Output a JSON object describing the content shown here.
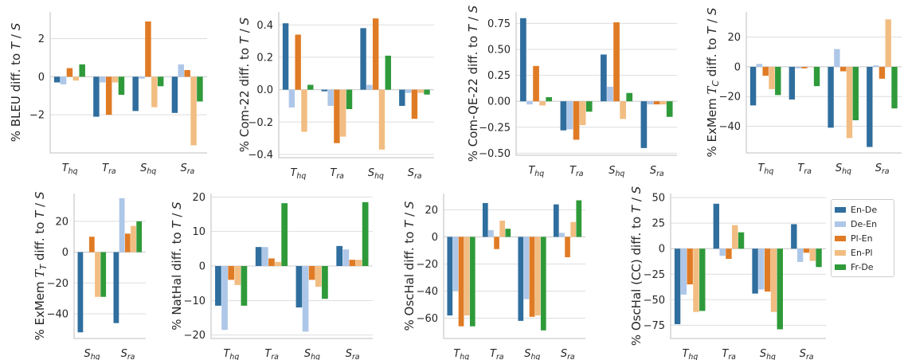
{
  "legend": {
    "items": [
      {
        "label": "En-De",
        "color": "#2f6e9e"
      },
      {
        "label": "De-En",
        "color": "#aec7e8"
      },
      {
        "label": "Pl-En",
        "color": "#e07b25"
      },
      {
        "label": "En-Pl",
        "color": "#f2bd82"
      },
      {
        "label": "Fr-De",
        "color": "#2f9a3a"
      }
    ]
  },
  "chart_data": [
    {
      "type": "bar",
      "ylabel": "% BLEU diff. to T / S",
      "categories": [
        "T_hq",
        "T_ra",
        "S_hq",
        "S_ra"
      ],
      "ylim": [
        -4.0,
        3.4
      ],
      "yticks": [
        2,
        0,
        -2
      ],
      "grid": true,
      "series": [
        {
          "name": "En-De",
          "values": [
            -0.3,
            -2.1,
            -1.8,
            -1.9
          ]
        },
        {
          "name": "De-En",
          "values": [
            -0.4,
            -0.3,
            -0.1,
            0.65
          ]
        },
        {
          "name": "Pl-En",
          "values": [
            0.45,
            -2.0,
            2.9,
            0.35
          ]
        },
        {
          "name": "En-Pl",
          "values": [
            -0.2,
            -0.3,
            -1.6,
            -3.6
          ]
        },
        {
          "name": "Fr-De",
          "values": [
            0.65,
            -0.95,
            -0.5,
            -1.3
          ]
        }
      ]
    },
    {
      "type": "bar",
      "ylabel": "% Com-22 diff. to T / S",
      "categories": [
        "T_hq",
        "T_ra",
        "S_hq",
        "S_ra"
      ],
      "ylim": [
        -0.42,
        0.48
      ],
      "yticks": [
        0.4,
        0.2,
        0.0,
        -0.2,
        -0.4
      ],
      "grid": true,
      "series": [
        {
          "name": "En-De",
          "values": [
            0.41,
            -0.01,
            0.38,
            -0.1
          ]
        },
        {
          "name": "De-En",
          "values": [
            -0.11,
            -0.1,
            0.03,
            -0.02
          ]
        },
        {
          "name": "Pl-En",
          "values": [
            0.34,
            -0.33,
            0.44,
            -0.18
          ]
        },
        {
          "name": "En-Pl",
          "values": [
            -0.26,
            -0.29,
            -0.37,
            -0.02
          ]
        },
        {
          "name": "Fr-De",
          "values": [
            0.03,
            -0.12,
            0.21,
            -0.03
          ]
        }
      ]
    },
    {
      "type": "bar",
      "ylabel": "% Com-QE-22 diff. to T / S",
      "categories": [
        "T_hq",
        "T_ra",
        "S_hq",
        "S_ra"
      ],
      "ylim": [
        -0.52,
        0.86
      ],
      "yticks": [
        0.75,
        0.5,
        0.25,
        0.0,
        -0.25,
        -0.5
      ],
      "grid": true,
      "series": [
        {
          "name": "En-De",
          "values": [
            0.8,
            -0.28,
            0.45,
            -0.45
          ]
        },
        {
          "name": "De-En",
          "values": [
            -0.03,
            -0.27,
            0.14,
            -0.03
          ]
        },
        {
          "name": "Pl-En",
          "values": [
            0.34,
            -0.37,
            0.76,
            -0.03
          ]
        },
        {
          "name": "En-Pl",
          "values": [
            -0.04,
            -0.23,
            -0.17,
            -0.03
          ]
        },
        {
          "name": "Fr-De",
          "values": [
            0.04,
            -0.1,
            0.08,
            -0.15
          ]
        }
      ]
    },
    {
      "type": "bar",
      "ylabel": "% ExMem T_C diff. to T / S",
      "categories": [
        "T_hq",
        "T_ra",
        "S_hq",
        "S_ra"
      ],
      "ylim": [
        -58,
        37
      ],
      "yticks": [
        20,
        0,
        -20,
        -40
      ],
      "grid": true,
      "series": [
        {
          "name": "En-De",
          "values": [
            -26,
            -22,
            -41,
            -54
          ]
        },
        {
          "name": "De-En",
          "values": [
            2,
            -1,
            12,
            1
          ]
        },
        {
          "name": "Pl-En",
          "values": [
            -6,
            -1,
            -3,
            -8
          ]
        },
        {
          "name": "En-Pl",
          "values": [
            -15,
            0,
            -48,
            32
          ]
        },
        {
          "name": "Fr-De",
          "values": [
            -19,
            -13,
            -36,
            -28
          ]
        }
      ]
    },
    {
      "type": "bar",
      "ylabel": "% ExMem T_T diff. to T / S",
      "categories": [
        "S_hq",
        "S_ra"
      ],
      "ylim": [
        -56,
        38
      ],
      "yticks": [
        20,
        0,
        -20,
        -40
      ],
      "grid": true,
      "series": [
        {
          "name": "En-De",
          "values": [
            -52,
            -46
          ]
        },
        {
          "name": "De-En",
          "values": [
            0,
            35
          ]
        },
        {
          "name": "Pl-En",
          "values": [
            10,
            12
          ]
        },
        {
          "name": "En-Pl",
          "values": [
            -29,
            17
          ]
        },
        {
          "name": "Fr-De",
          "values": [
            -29,
            20
          ]
        }
      ]
    },
    {
      "type": "bar",
      "ylabel": "% NatHal diff. to T / S",
      "categories": [
        "T_hq",
        "T_ra",
        "S_hq",
        "S_ra"
      ],
      "ylim": [
        -21,
        21
      ],
      "yticks": [
        20,
        10,
        0,
        -10,
        -20
      ],
      "grid": true,
      "series": [
        {
          "name": "En-De",
          "values": [
            -11.5,
            5.5,
            -12,
            5.8
          ]
        },
        {
          "name": "De-En",
          "values": [
            -18.5,
            5.5,
            -19,
            4.8
          ]
        },
        {
          "name": "Pl-En",
          "values": [
            -4,
            2.2,
            -4,
            1.8
          ]
        },
        {
          "name": "En-Pl",
          "values": [
            -5.5,
            1.2,
            -6,
            1.8
          ]
        },
        {
          "name": "Fr-De",
          "values": [
            -11.5,
            18.2,
            -9.5,
            18.5
          ]
        }
      ]
    },
    {
      "type": "bar",
      "ylabel": "% OscHal diff. to T / S",
      "categories": [
        "T_hq",
        "T_ra",
        "S_hq",
        "S_ra"
      ],
      "ylim": [
        -75,
        32
      ],
      "yticks": [
        20,
        0,
        -20,
        -40,
        -60
      ],
      "grid": true,
      "series": [
        {
          "name": "En-De",
          "values": [
            -58,
            25,
            -62,
            24
          ]
        },
        {
          "name": "De-En",
          "values": [
            -40,
            5,
            -46,
            3
          ]
        },
        {
          "name": "Pl-En",
          "values": [
            -66,
            -9,
            -59,
            -15
          ]
        },
        {
          "name": "En-Pl",
          "values": [
            -58,
            12,
            -58,
            11
          ]
        },
        {
          "name": "Fr-De",
          "values": [
            -66,
            6,
            -69,
            27
          ]
        }
      ]
    },
    {
      "type": "bar",
      "ylabel": "% OscHal (CC) diff. to T / S",
      "categories": [
        "T_hq",
        "T_ra",
        "S_hq",
        "S_ra"
      ],
      "ylim": [
        -88,
        54
      ],
      "yticks": [
        50,
        25,
        0,
        -25,
        -50,
        -75
      ],
      "grid": true,
      "series": [
        {
          "name": "En-De",
          "values": [
            -74,
            44,
            -44,
            24
          ]
        },
        {
          "name": "De-En",
          "values": [
            -45,
            -7,
            -40,
            -13
          ]
        },
        {
          "name": "Pl-En",
          "values": [
            -35,
            -10,
            -42,
            -4
          ]
        },
        {
          "name": "En-Pl",
          "values": [
            -62,
            23,
            -62,
            -12
          ]
        },
        {
          "name": "Fr-De",
          "values": [
            -61,
            16,
            -79,
            -18
          ]
        }
      ]
    }
  ]
}
